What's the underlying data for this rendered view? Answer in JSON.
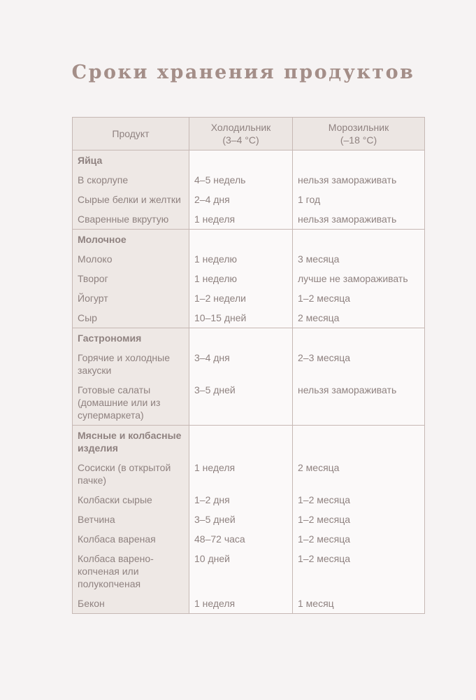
{
  "title": "Сроки хранения продуктов",
  "headers": [
    "Продукт",
    "Холодильник (3–4 °C)",
    "Морозильник (–18 °C)"
  ],
  "groups": [
    {
      "name": "Яйца",
      "rows": [
        [
          "В скорлупе",
          "4–5 недель",
          "нельзя замораживать"
        ],
        [
          "Сырые белки и желтки",
          "2–4 дня",
          "1 год"
        ],
        [
          "Сваренные вкрутую",
          "1 неделя",
          "нельзя замораживать"
        ]
      ]
    },
    {
      "name": "Молочное",
      "rows": [
        [
          "Молоко",
          "1 неделю",
          "3 месяца"
        ],
        [
          "Творог",
          "1 неделю",
          "лучше не замораживать"
        ],
        [
          "Йогурт",
          "1–2 недели",
          "1–2 месяца"
        ],
        [
          "Сыр",
          "10–15 дней",
          "2 месяца"
        ]
      ]
    },
    {
      "name": "Гастрономия",
      "rows": [
        [
          "Горячие и холодные закуски",
          "3–4 дня",
          "2–3 месяца"
        ],
        [
          "Готовые салаты (домашние или из супермаркета)",
          "3–5 дней",
          "нельзя замораживать"
        ]
      ]
    },
    {
      "name": "Мясные и колбасные изделия",
      "rows": [
        [
          "Сосиски (в открытой пачке)",
          "1 неделя",
          "2 месяца"
        ],
        [
          "Колбаски сырые",
          "1–2 дня",
          "1–2 месяца"
        ],
        [
          "Ветчина",
          "3–5 дней",
          "1–2 месяца"
        ],
        [
          "Колбаса вареная",
          "48–72 часа",
          "1–2 месяца"
        ],
        [
          "Колбаса варено-копченая или полукопченая",
          "10 дней",
          "1–2 месяца"
        ],
        [
          "Бекон",
          "1 неделя",
          "1 месяц"
        ]
      ]
    }
  ],
  "colors": {
    "background": "#f6f3f3",
    "title": "#a48e88",
    "text": "#8f8280",
    "border": "#c6b8b4",
    "header_bg": "#ece6e3"
  }
}
